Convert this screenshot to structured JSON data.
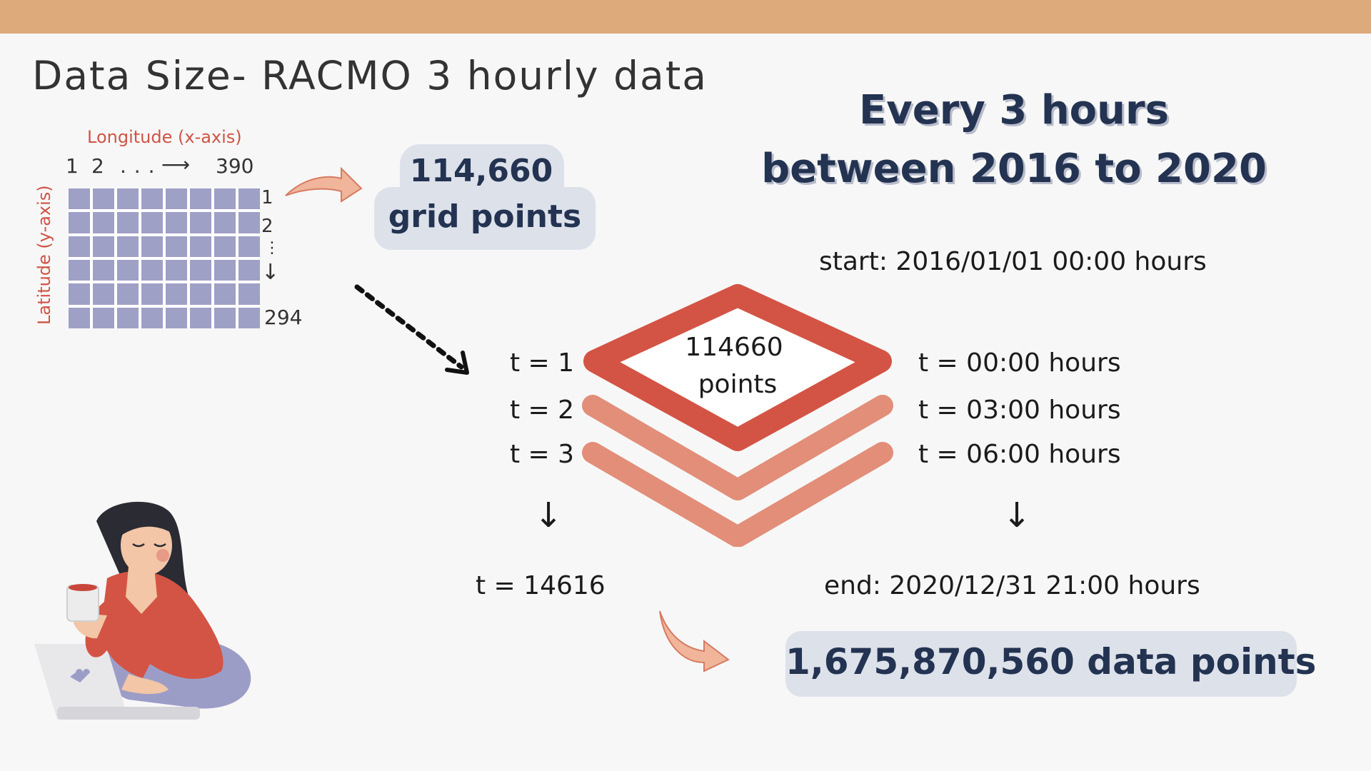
{
  "title": "Data Size- RACMO 3 hourly data",
  "grid": {
    "x_axis_label": "Longitude (x-axis)",
    "y_axis_label": "Latitude (y-axis)",
    "x_ticks": {
      "first": "1",
      "second": "2",
      "dots": ". . .",
      "arrow": "⟶",
      "last": "390"
    },
    "y_ticks": {
      "first": "1",
      "second": "2",
      "dots": "⋮",
      "arrow": "↓",
      "last": "294"
    }
  },
  "grid_points": {
    "line1": "114,660",
    "line2": "grid points"
  },
  "headline": {
    "line1": "Every 3 hours",
    "line2": "between 2016 to 2020"
  },
  "start_text": "start: 2016/01/01  00:00 hours",
  "end_text": "end: 2020/12/31  21:00 hours",
  "stack_label": {
    "line1": "114660",
    "line2": "points"
  },
  "time_steps": [
    "t = 1",
    "t = 2",
    "t = 3"
  ],
  "time_hours": [
    "t = 00:00 hours",
    "t = 03:00 hours",
    "t = 06:00 hours"
  ],
  "down_arrow": "↓",
  "t_last": "t = 14616",
  "total": "1,675,870,560 data points",
  "colors": {
    "top_bar": "#ddaa7c",
    "accent_red": "#d35444",
    "layer_salmon": "#e28e78",
    "navy": "#233351",
    "pill_bg": "#dde1ea",
    "grid_cell": "#9fa0c5"
  }
}
